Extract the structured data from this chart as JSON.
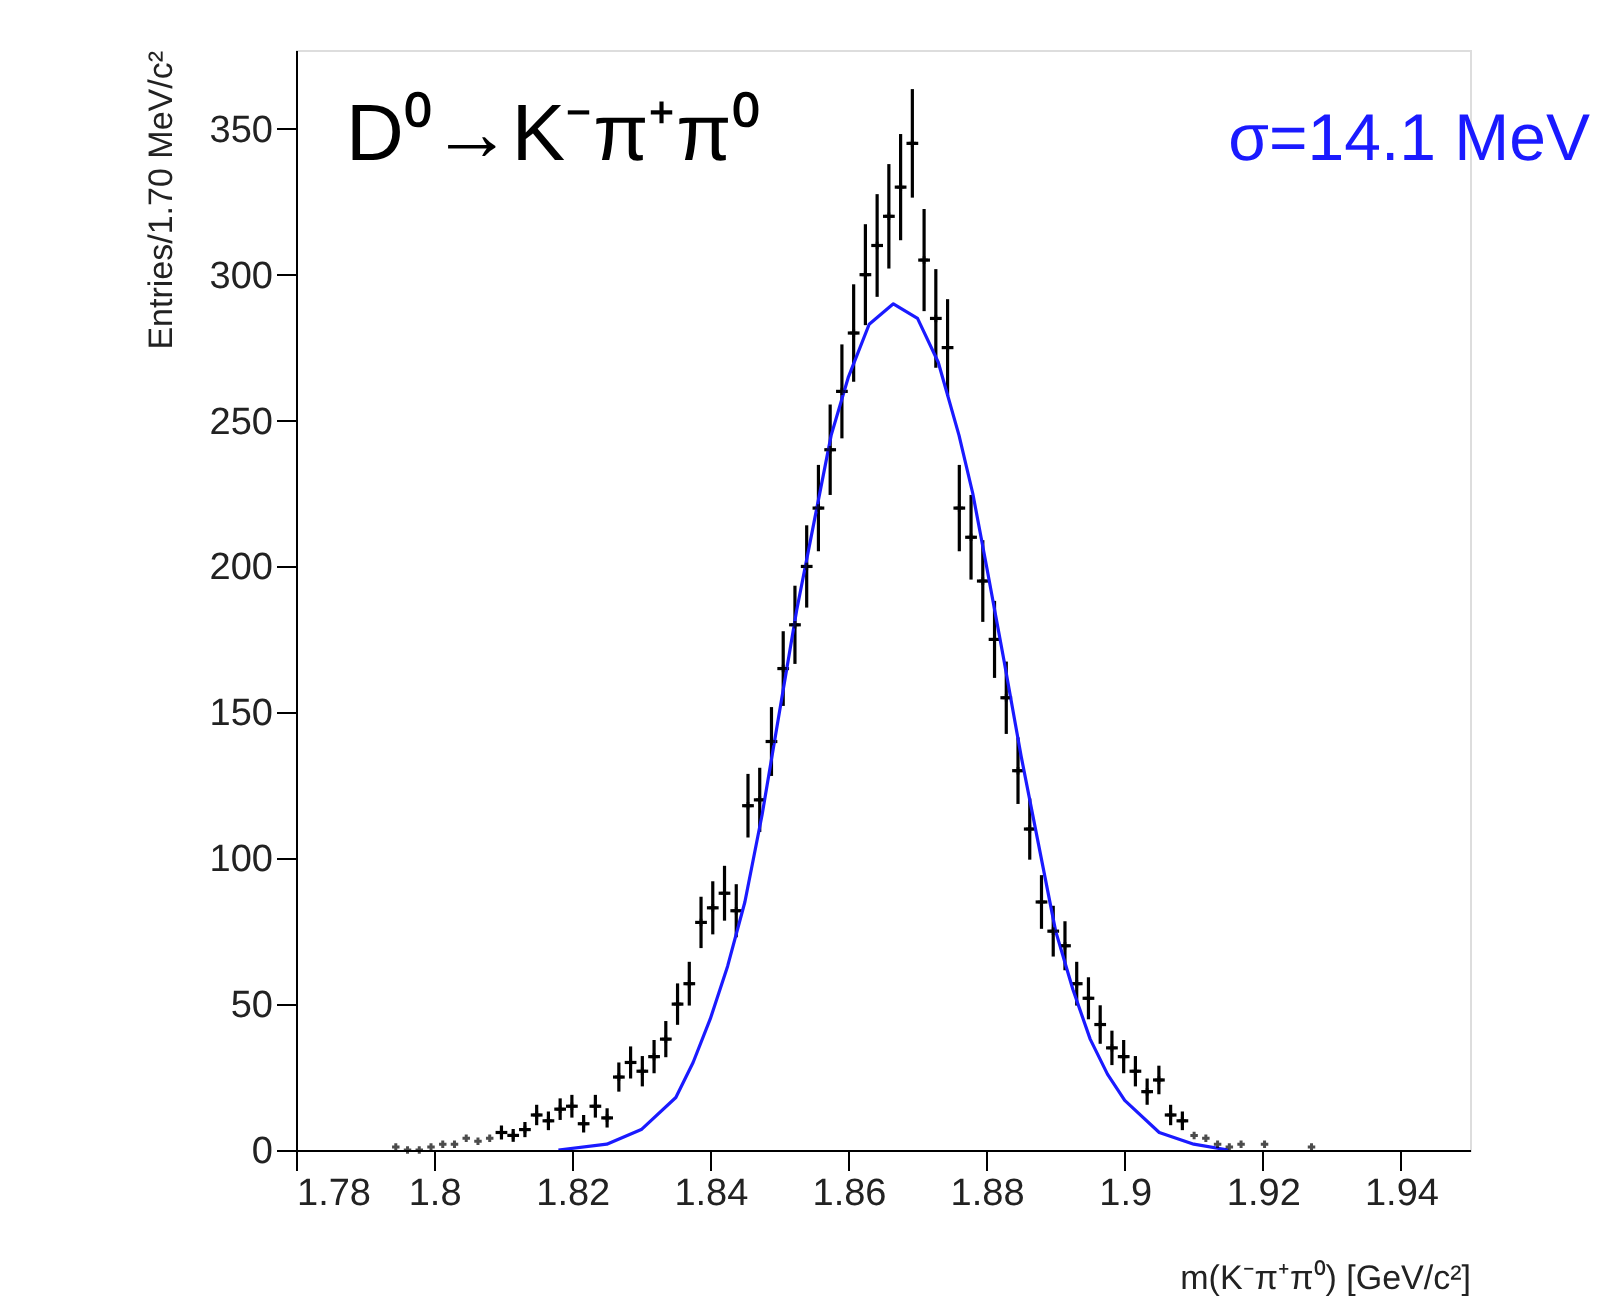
{
  "chart_data": {
    "type": "scatter",
    "xlabel": "m(K⁻π⁺π⁰) [GeV/c²]",
    "ylabel": "Entries/1.70 MeV/c²",
    "annotations": [
      "D⁰→K⁻π⁺π⁰",
      "σ=14.1 MeV"
    ],
    "xlim": [
      1.78,
      1.95
    ],
    "xticks": [
      1.78,
      1.8,
      1.82,
      1.84,
      1.86,
      1.88,
      1.9,
      1.92,
      1.94
    ],
    "ylim": [
      0,
      377
    ],
    "yticks": [
      0,
      50,
      100,
      150,
      200,
      250,
      300,
      350
    ],
    "grid": false,
    "series": [
      {
        "color": "#000000",
        "marker": "cross",
        "x": [
          1.79445,
          1.79615,
          1.79785,
          1.79955,
          1.80125,
          1.80295,
          1.80465,
          1.80635,
          1.80805,
          1.80975,
          1.81145,
          1.81315,
          1.81485,
          1.81655,
          1.81825,
          1.81995,
          1.82165,
          1.82335,
          1.82505,
          1.82675,
          1.82845,
          1.83015,
          1.83185,
          1.83355,
          1.83525,
          1.83695,
          1.83865,
          1.84035,
          1.84205,
          1.84375,
          1.84545,
          1.84715,
          1.84885,
          1.85055,
          1.85225,
          1.85395,
          1.85565,
          1.85735,
          1.85905,
          1.86075,
          1.86245,
          1.86415,
          1.86585,
          1.86755,
          1.86925,
          1.87095,
          1.87265,
          1.87435,
          1.87605,
          1.87775,
          1.87945,
          1.88115,
          1.88285,
          1.88455,
          1.88625,
          1.88795,
          1.88965,
          1.89135,
          1.89305,
          1.89475,
          1.89645,
          1.89815,
          1.89985,
          1.90155,
          1.90325,
          1.90495,
          1.90665,
          1.90835,
          1.91005,
          1.91175,
          1.91345,
          1.91515,
          1.91685,
          1.92025,
          1.92705
        ],
        "values": [
          1,
          0,
          0,
          1,
          2,
          2,
          4,
          3,
          4,
          6,
          5,
          7,
          12,
          10,
          14,
          15,
          9,
          15,
          11,
          25,
          30,
          27,
          32,
          38,
          50,
          57,
          78,
          83,
          88,
          82,
          118,
          120,
          140,
          165,
          180,
          200,
          220,
          240,
          260,
          280,
          300,
          310,
          320,
          330,
          345,
          305,
          285,
          275,
          220,
          210,
          195,
          175,
          155,
          130,
          110,
          85,
          75,
          70,
          57,
          52,
          43,
          35,
          32,
          27,
          20,
          24,
          12,
          10,
          5,
          4,
          2,
          1,
          2,
          2,
          1
        ],
        "errors": [
          null,
          null,
          null,
          null,
          null,
          null,
          null,
          null,
          null,
          2.4,
          2.2,
          2.6,
          3.5,
          3.2,
          3.7,
          3.9,
          3,
          3.9,
          3.3,
          5,
          5.5,
          5.2,
          5.7,
          6.2,
          7.1,
          7.5,
          8.8,
          9.1,
          9.4,
          9.1,
          10.9,
          11,
          11.8,
          12.8,
          13.4,
          14.1,
          14.8,
          15.5,
          16.1,
          16.7,
          17.3,
          17.6,
          17.9,
          18.2,
          18.6,
          17.5,
          16.9,
          16.6,
          14.8,
          14.5,
          14,
          13.2,
          12.4,
          11.4,
          10.5,
          9.2,
          8.7,
          8.4,
          7.5,
          7.2,
          6.6,
          5.9,
          5.7,
          5.2,
          4.5,
          4.9,
          3.5,
          3.2,
          null,
          null,
          null,
          null,
          null,
          null,
          null
        ],
        "xerrors": [
          null,
          null,
          null,
          null,
          null,
          null,
          null,
          null,
          null,
          0.00085,
          0.00085,
          0.00085,
          0.00085,
          0.00085,
          0.00085,
          0.00085,
          0.00085,
          0.00085,
          0.00085,
          0.00085,
          0.00085,
          0.00085,
          0.00085,
          0.00085,
          0.00085,
          0.00085,
          0.00085,
          0.00085,
          0.00085,
          0.00085,
          0.00085,
          0.00085,
          0.00085,
          0.00085,
          0.00085,
          0.00085,
          0.00085,
          0.00085,
          0.00085,
          0.00085,
          0.00085,
          0.00085,
          0.00085,
          0.00085,
          0.00085,
          0.00085,
          0.00085,
          0.00085,
          0.00085,
          0.00085,
          0.00085,
          0.00085,
          0.00085,
          0.00085,
          0.00085,
          0.00085,
          0.00085,
          0.00085,
          0.00085,
          0.00085,
          0.00085,
          0.00085,
          0.00085,
          0.00085,
          0.00085,
          0.00085,
          0.00085,
          0.00085,
          null,
          null,
          null,
          null,
          null,
          null,
          null
        ]
      },
      {
        "type": "line",
        "color": "#1a1aff",
        "x": [
          1.818,
          1.825,
          1.83,
          1.835,
          1.8375,
          1.84,
          1.8425,
          1.845,
          1.8475,
          1.85,
          1.8525,
          1.855,
          1.8575,
          1.86,
          1.863,
          1.8665,
          1.87,
          1.873,
          1.876,
          1.878,
          1.88,
          1.8825,
          1.885,
          1.8875,
          1.89,
          1.8925,
          1.895,
          1.8975,
          1.9,
          1.905,
          1.91,
          1.915
        ],
        "values": [
          0,
          2,
          7,
          18,
          30,
          45,
          63,
          85,
          115,
          150,
          185,
          215,
          245,
          265,
          283,
          290,
          285,
          270,
          245,
          225,
          200,
          168,
          135,
          105,
          75,
          55,
          38,
          26,
          17,
          6,
          2,
          0
        ]
      }
    ]
  }
}
